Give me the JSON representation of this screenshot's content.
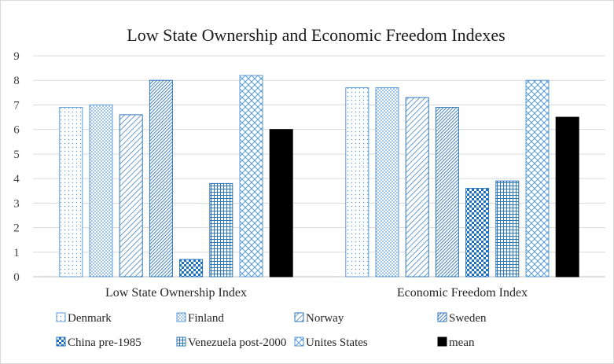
{
  "chart_data": {
    "type": "bar",
    "title": "Low State Ownership and Economic Freedom Indexes",
    "categories": [
      "Low State Ownership Index",
      "Economic Freedom Index"
    ],
    "ylim": [
      0,
      9
    ],
    "yticks": [
      0,
      1,
      2,
      3,
      4,
      5,
      6,
      7,
      8,
      9
    ],
    "grid": true,
    "legend_position": "bottom",
    "series": [
      {
        "name": "Denmark",
        "values": [
          6.9,
          7.7
        ],
        "pattern": "dots-light",
        "color": "#5b9bd5"
      },
      {
        "name": "Finland",
        "values": [
          7.0,
          7.7
        ],
        "pattern": "dots-dense",
        "color": "#5b9bd5"
      },
      {
        "name": "Norway",
        "values": [
          6.6,
          7.3
        ],
        "pattern": "diagonal-down",
        "color": "#2e75b6"
      },
      {
        "name": "Sweden",
        "values": [
          8.0,
          6.9
        ],
        "pattern": "diagonal-dense",
        "color": "#2e75b6"
      },
      {
        "name": "China pre-1985",
        "values": [
          0.7,
          3.6
        ],
        "pattern": "checker",
        "color": "#1f6fc0"
      },
      {
        "name": "Venezuela post-2000",
        "values": [
          3.8,
          3.9
        ],
        "pattern": "grid",
        "color": "#2e75b6"
      },
      {
        "name": "Unites States",
        "values": [
          8.2,
          8.0
        ],
        "pattern": "diagonal-cross",
        "color": "#5b9bd5"
      },
      {
        "name": "mean",
        "values": [
          6.0,
          6.5
        ],
        "pattern": "solid",
        "color": "#000000"
      }
    ]
  }
}
